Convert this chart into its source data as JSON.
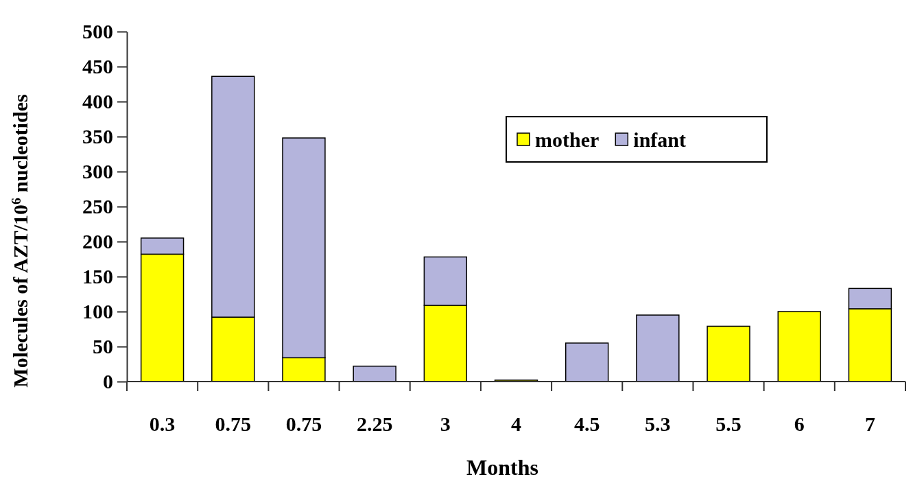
{
  "chart_data": {
    "type": "bar",
    "stacked": true,
    "xlabel": "Months",
    "ylabel": "Molecules of AZT/10$^{6}$ nucleotides",
    "categories": [
      "0.3",
      "0.75",
      "0.75",
      "2.25",
      "3",
      "4",
      "4.5",
      "5.3",
      "5.5",
      "6",
      "7"
    ],
    "series": [
      {
        "name": "mother",
        "color": "#ffff00",
        "values": [
          182,
          92,
          34,
          0,
          109,
          2,
          0,
          0,
          79,
          100,
          104
        ]
      },
      {
        "name": "infant",
        "color": "#b4b4dc",
        "values": [
          23,
          344,
          314,
          22,
          69,
          0,
          55,
          95,
          0,
          0,
          29
        ]
      }
    ],
    "ylim": [
      0,
      500
    ],
    "yticks": [
      0,
      50,
      100,
      150,
      200,
      250,
      300,
      350,
      400,
      450,
      500
    ],
    "grid": false,
    "legend": "top right"
  }
}
